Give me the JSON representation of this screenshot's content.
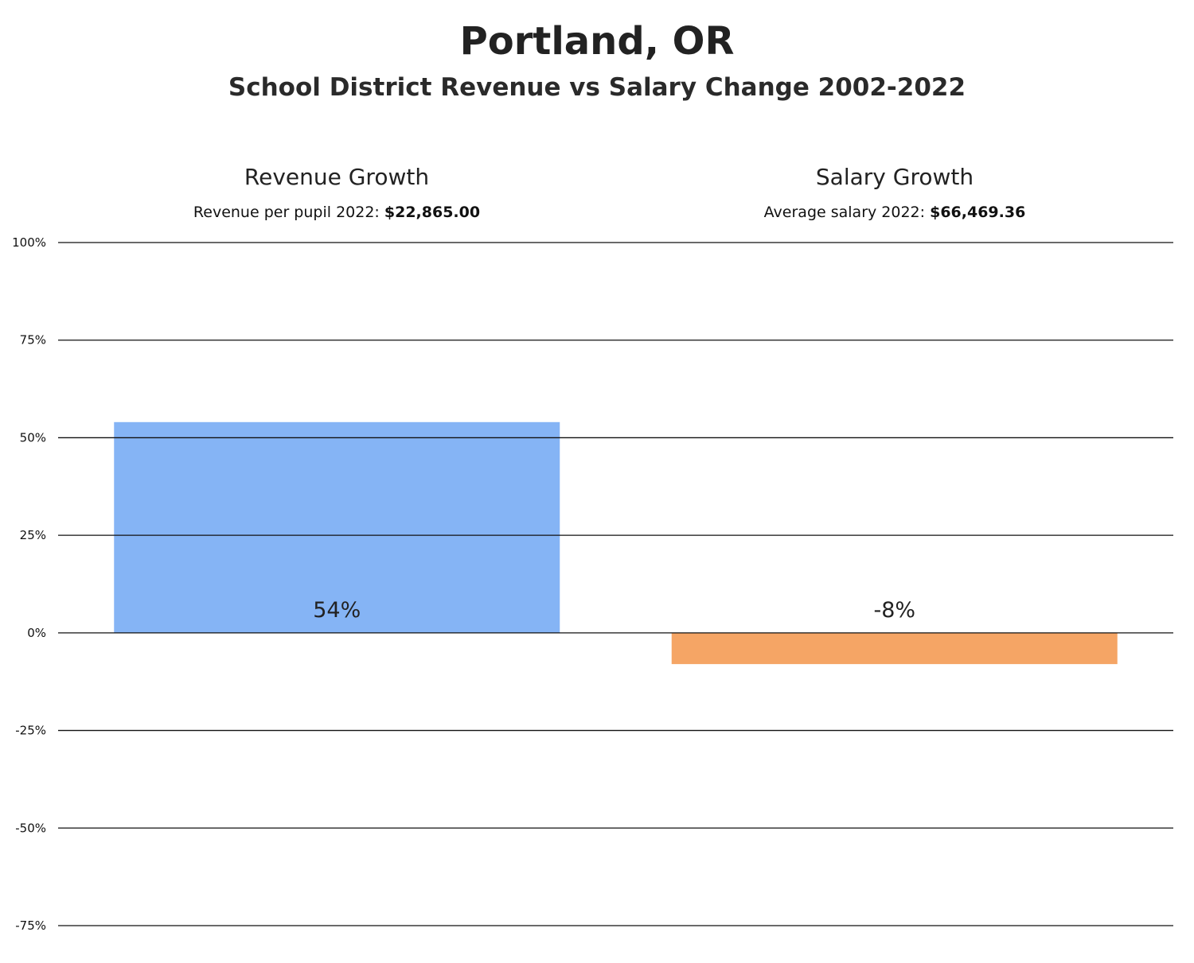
{
  "header": {
    "title": "Portland, OR",
    "subtitle": "School District Revenue vs Salary Change 2002-2022"
  },
  "panels": [
    {
      "title": "Revenue Growth",
      "caption_label": "Revenue per pupil 2022:",
      "caption_value": "$22,865.00"
    },
    {
      "title": "Salary Growth",
      "caption_label": "Average salary 2022:",
      "caption_value": "$66,469.36"
    }
  ],
  "chart_data": {
    "type": "bar",
    "categories": [
      "Revenue Growth",
      "Salary Growth"
    ],
    "values": [
      54,
      -8
    ],
    "data_labels": [
      "54%",
      "-8%"
    ],
    "colors": [
      "#85b4f5",
      "#f5a565"
    ],
    "yticks": [
      "100%",
      "75%",
      "50%",
      "25%",
      "0%",
      "-25%",
      "-50%",
      "-75%"
    ],
    "ylim": [
      -75,
      100
    ],
    "grid": true
  }
}
